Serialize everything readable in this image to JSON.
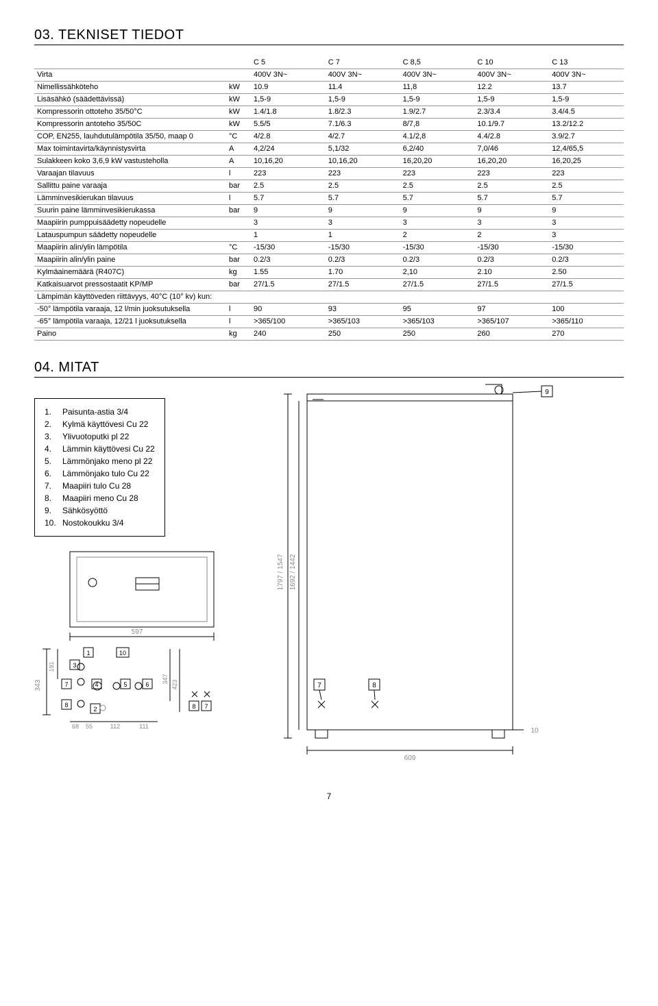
{
  "section03": {
    "title": "03. TEKNISET TIEDOT",
    "columns": [
      "C 5",
      "C 7",
      "C 8,5",
      "C 10",
      "C 13"
    ],
    "rows": [
      {
        "label": "Virta",
        "unit": "",
        "vals": [
          "400V 3N~",
          "400V 3N~",
          "400V 3N~",
          "400V 3N~",
          "400V 3N~"
        ]
      },
      {
        "label": "Nimellissähköteho",
        "unit": "kW",
        "vals": [
          "10.9",
          "11.4",
          "11,8",
          "12.2",
          "13.7"
        ]
      },
      {
        "label": "Lisäsähkö (säädettävissä)",
        "unit": "kW",
        "vals": [
          "1,5-9",
          "1,5-9",
          "1,5-9",
          "1,5-9",
          "1,5-9"
        ]
      },
      {
        "label": "Kompressorin ottoteho 35/50°C",
        "unit": "kW",
        "vals": [
          "1.4/1.8",
          "1.8/2.3",
          "1.9/2.7",
          "2.3/3.4",
          "3.4/4.5"
        ]
      },
      {
        "label": "Kompressorin antoteho 35/50C",
        "unit": "kW",
        "vals": [
          "5.5/5",
          "7.1/6.3",
          "8/7,8",
          "10.1/9.7",
          "13.2/12.2"
        ]
      },
      {
        "label": "COP, EN255, lauhdutulämpötila 35/50, maap 0",
        "unit": "°C",
        "vals": [
          "4/2.8",
          "4/2.7",
          "4.1/2,8",
          "4.4/2.8",
          "3.9/2.7"
        ]
      },
      {
        "label": "Max toimintavirta/käynnistysvirta",
        "unit": "A",
        "vals": [
          "4,2/24",
          "5,1/32",
          "6,2/40",
          "7,0/46",
          "12,4/65,5"
        ]
      },
      {
        "label": "Sulakkeen koko 3,6,9 kW vastusteholla",
        "unit": "A",
        "vals": [
          "10,16,20",
          "10,16,20",
          "16,20,20",
          "16,20,20",
          "16,20,25"
        ]
      },
      {
        "label": "Varaajan tilavuus",
        "unit": "l",
        "vals": [
          "223",
          "223",
          "223",
          "223",
          "223"
        ]
      },
      {
        "label": "Sallittu paine varaaja",
        "unit": "bar",
        "vals": [
          "2.5",
          "2.5",
          "2.5",
          "2.5",
          "2.5"
        ]
      },
      {
        "label": "Lämminvesikierukan tilavuus",
        "unit": "l",
        "vals": [
          "5.7",
          "5.7",
          "5.7",
          "5.7",
          "5.7"
        ]
      },
      {
        "label": "Suurin paine lämminvesikierukassa",
        "unit": "bar",
        "vals": [
          "9",
          "9",
          "9",
          "9",
          "9"
        ]
      },
      {
        "label": "Maapiirin pumppuisäädetty nopeudelle",
        "unit": "",
        "vals": [
          "3",
          "3",
          "3",
          "3",
          "3"
        ]
      },
      {
        "label": "Latauspumpun säädetty nopeudelle",
        "unit": "",
        "vals": [
          "1",
          "1",
          "2",
          "2",
          "3"
        ]
      },
      {
        "label": "Maapiirin alin/ylin lämpötila",
        "unit": "°C",
        "vals": [
          "-15/30",
          "-15/30",
          "-15/30",
          "-15/30",
          "-15/30"
        ]
      },
      {
        "label": "Maapiirin alin/ylin paine",
        "unit": "bar",
        "vals": [
          "0.2/3",
          "0.2/3",
          "0.2/3",
          "0.2/3",
          "0.2/3"
        ]
      },
      {
        "label": "Kylmäainemäärä (R407C)",
        "unit": "kg",
        "vals": [
          "1.55",
          "1.70",
          "2,10",
          "2.10",
          "2.50"
        ]
      },
      {
        "label": "Katkaisuarvot pressostaatit KP/MP",
        "unit": "bar",
        "vals": [
          "27/1.5",
          "27/1.5",
          "27/1.5",
          "27/1.5",
          "27/1.5"
        ]
      },
      {
        "label": "Lämpimän käyttöveden riittävyys, 40°C (10° kv) kun:",
        "unit": "",
        "vals": [
          "",
          "",
          "",
          "",
          ""
        ]
      },
      {
        "label": "-50° lämpötila varaaja, 12 l/min juoksutuksella",
        "unit": "l",
        "vals": [
          "90",
          "93",
          "95",
          "97",
          "100"
        ]
      },
      {
        "label": "-65° lämpötila varaaja, 12/21 l juoksutuksella",
        "unit": "l",
        "vals": [
          ">365/100",
          ">365/103",
          ">365/103",
          ">365/107",
          ">365/110"
        ]
      },
      {
        "label": "Paino",
        "unit": "kg",
        "vals": [
          "240",
          "250",
          "250",
          "260",
          "270"
        ]
      }
    ]
  },
  "section04": {
    "title": "04. MITAT",
    "legend": [
      {
        "n": "1.",
        "t": "Paisunta-astia 3/4"
      },
      {
        "n": "2.",
        "t": "Kylmä käyttövesi Cu 22"
      },
      {
        "n": "3.",
        "t": "Ylivuotoputki pl 22"
      },
      {
        "n": "4.",
        "t": "Lämmin käyttövesi Cu 22"
      },
      {
        "n": "5.",
        "t": "Lämmönjako meno pl 22"
      },
      {
        "n": "6.",
        "t": "Lämmönjako tulo Cu 22"
      },
      {
        "n": "7.",
        "t": "Maapiiri tulo Cu 28"
      },
      {
        "n": "8.",
        "t": "Maapiiri meno Cu 28"
      },
      {
        "n": "9.",
        "t": "Sähkösyöttö"
      },
      {
        "n": "10.",
        "t": "Nostokoukku 3/4"
      }
    ],
    "front_view": {
      "width_label": "597",
      "left_dim": "343",
      "left_dim2": "191",
      "bottom_dim1": "68",
      "bottom_dim2": "55",
      "bottom_dim3": "112",
      "bottom_dim4": "111",
      "right_dim1": "347",
      "right_dim2": "423",
      "callouts": [
        "1",
        "2",
        "3",
        "4",
        "5",
        "6",
        "7",
        "8",
        "10",
        "8",
        "7"
      ]
    },
    "side_view": {
      "width_label": "609",
      "h1": "1797 / 1547",
      "h2": "1692 / 1442",
      "right_dim": "10",
      "callouts": [
        "7",
        "8",
        "9"
      ]
    }
  },
  "pagenum": "7",
  "colors": {
    "text": "#000000",
    "line": "#000000",
    "grid": "#999999",
    "light": "#bbbbbb"
  }
}
